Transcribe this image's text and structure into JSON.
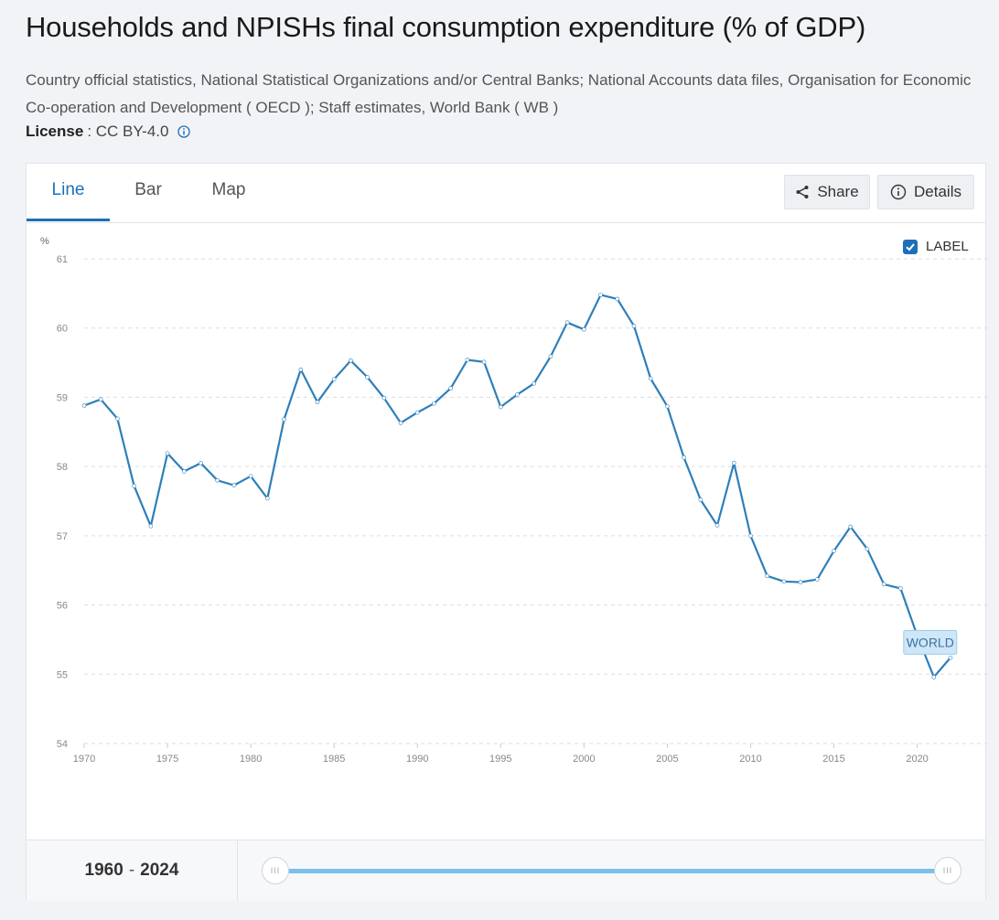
{
  "page": {
    "title": "Households and NPISHs final consumption expenditure (% of GDP)",
    "source": "Country official statistics, National Statistical Organizations and/or Central Banks; National Accounts data files, Organisation for Economic Co-operation and Development ( OECD ); Staff estimates, World Bank ( WB )",
    "license_label": "License",
    "license_value": ": CC BY-4.0"
  },
  "tabs": [
    {
      "label": "Line"
    },
    {
      "label": "Bar"
    },
    {
      "label": "Map"
    }
  ],
  "toolbar": {
    "share_label": "Share",
    "details_label": "Details"
  },
  "label_toggle": {
    "text": "LABEL",
    "checked": true
  },
  "range": {
    "start": "1960",
    "sep": "-",
    "end": "2024"
  },
  "colors": {
    "accent": "#1d6fb8",
    "line": "#2e7fb9",
    "grid": "#dddddd",
    "label_bg": "#cfe6f7"
  },
  "chart_data": {
    "type": "line",
    "title": "Households and NPISHs final consumption expenditure (% of GDP)",
    "ylabel": "%",
    "xlabel": "",
    "ylim": [
      54,
      61
    ],
    "xlim": [
      1970,
      2022
    ],
    "grid": true,
    "yticks": [
      54,
      55,
      56,
      57,
      58,
      59,
      60,
      61
    ],
    "xticks": [
      1970,
      1975,
      1980,
      1985,
      1990,
      1995,
      2000,
      2005,
      2010,
      2015,
      2020
    ],
    "series": [
      {
        "name": "WORLD",
        "x": [
          1970,
          1971,
          1972,
          1973,
          1974,
          1975,
          1976,
          1977,
          1978,
          1979,
          1980,
          1981,
          1982,
          1983,
          1984,
          1985,
          1986,
          1987,
          1988,
          1989,
          1990,
          1991,
          1992,
          1993,
          1994,
          1995,
          1996,
          1997,
          1998,
          1999,
          2000,
          2001,
          2002,
          2003,
          2004,
          2005,
          2006,
          2007,
          2008,
          2009,
          2010,
          2011,
          2012,
          2013,
          2014,
          2015,
          2016,
          2017,
          2018,
          2019,
          2020,
          2021,
          2022
        ],
        "values": [
          58.88,
          58.97,
          58.69,
          57.72,
          57.14,
          58.19,
          57.93,
          58.05,
          57.8,
          57.73,
          57.86,
          57.54,
          58.68,
          59.4,
          58.93,
          59.26,
          59.53,
          59.29,
          58.99,
          58.63,
          58.78,
          58.91,
          59.13,
          59.54,
          59.51,
          58.86,
          59.04,
          59.2,
          59.59,
          60.08,
          59.98,
          60.48,
          60.42,
          60.03,
          59.27,
          58.87,
          58.13,
          57.52,
          57.15,
          58.05,
          57.0,
          56.42,
          56.34,
          56.33,
          56.37,
          56.78,
          57.13,
          56.81,
          56.3,
          56.24,
          55.56,
          54.96,
          55.24
        ]
      }
    ]
  }
}
